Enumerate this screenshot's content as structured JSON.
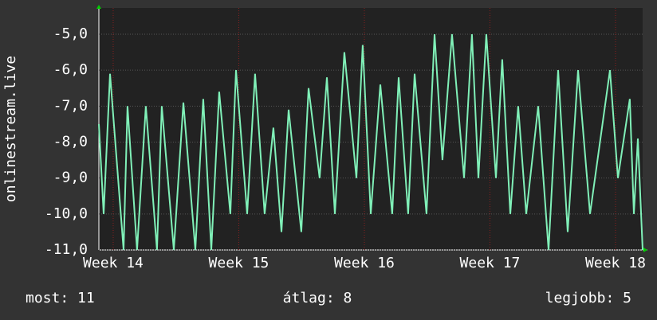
{
  "chart_data": {
    "type": "line",
    "y_label": "onlinestream.live",
    "x": [
      13.886,
      13.924,
      13.975,
      14.083,
      14.114,
      14.19,
      14.26,
      14.349,
      14.387,
      14.483,
      14.559,
      14.654,
      14.717,
      14.781,
      14.844,
      14.933,
      14.978,
      15.067,
      15.13,
      15.206,
      15.276,
      15.34,
      15.397,
      15.498,
      15.556,
      15.644,
      15.702,
      15.765,
      15.841,
      15.937,
      15.987,
      16.051,
      16.127,
      16.222,
      16.273,
      16.349,
      16.4,
      16.495,
      16.559,
      16.622,
      16.698,
      16.794,
      16.857,
      16.908,
      16.971,
      17.048,
      17.098,
      17.162,
      17.225,
      17.289,
      17.384,
      17.467,
      17.543,
      17.619,
      17.702,
      17.797,
      17.956,
      18.019,
      18.114,
      18.146,
      18.178,
      18.216
    ],
    "series": [
      {
        "name": "onlinestream.live",
        "color": "#80f0b8",
        "values": [
          -7.5,
          -10,
          -6.1,
          -11,
          -7,
          -11,
          -7,
          -11,
          -7,
          -11,
          -6.9,
          -11,
          -6.8,
          -11,
          -6.6,
          -10,
          -6,
          -10,
          -6.1,
          -10,
          -7.6,
          -10.5,
          -7.1,
          -10.5,
          -6.5,
          -9,
          -6.2,
          -10,
          -5.5,
          -9,
          -5.3,
          -10,
          -6.4,
          -10,
          -6.2,
          -10,
          -6.1,
          -10,
          -5,
          -8.5,
          -5,
          -9,
          -5,
          -9,
          -5,
          -9,
          -5.7,
          -10,
          -7,
          -10,
          -7,
          -11,
          -6,
          -10.5,
          -6,
          -10,
          -6,
          -9,
          -6.8,
          -10,
          -7.9,
          -11
        ]
      }
    ],
    "xlim": [
      13.886,
      18.216
    ],
    "xticks": [
      {
        "value": 14,
        "label": "Week 14"
      },
      {
        "value": 15,
        "label": "Week 15"
      },
      {
        "value": 16,
        "label": "Week 16"
      },
      {
        "value": 17,
        "label": "Week 17"
      },
      {
        "value": 18,
        "label": "Week 18"
      }
    ],
    "ylim": [
      -11,
      -4.27
    ],
    "yticks": [
      {
        "value": -11,
        "label": "-11,0"
      },
      {
        "value": -10,
        "label": "-10,0"
      },
      {
        "value": -9,
        "label": "-9,0"
      },
      {
        "value": -8,
        "label": "-8,0"
      },
      {
        "value": -7,
        "label": "-7,0"
      },
      {
        "value": -6,
        "label": "-6,0"
      },
      {
        "value": -5,
        "label": "-5,0"
      }
    ],
    "grid": true,
    "legend": [
      "most: 11",
      "átlag: 8",
      "legjobb: 5"
    ]
  }
}
